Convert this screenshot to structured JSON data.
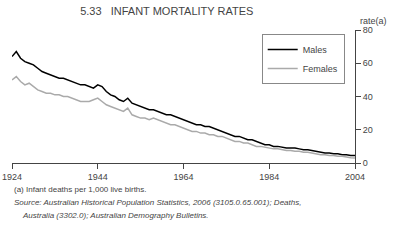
{
  "chart_data": {
    "type": "line",
    "title": "5.33   INFANT MORTALITY RATES",
    "y_label": "rate(a)",
    "annotations": [
      "(a) Infant deaths per 1,000 live births.",
      "Source: Australian Historical Population Statistics, 2006 (3105.0.65.001); Deaths,",
      "Australia (3302.0); Australian Demography Bulletins."
    ],
    "x": [
      1924,
      1925,
      1926,
      1927,
      1928,
      1929,
      1930,
      1931,
      1932,
      1933,
      1934,
      1935,
      1936,
      1937,
      1938,
      1939,
      1940,
      1941,
      1942,
      1943,
      1944,
      1945,
      1946,
      1947,
      1948,
      1949,
      1950,
      1951,
      1952,
      1953,
      1954,
      1955,
      1956,
      1957,
      1958,
      1959,
      1960,
      1961,
      1962,
      1963,
      1964,
      1965,
      1966,
      1967,
      1968,
      1969,
      1970,
      1971,
      1972,
      1973,
      1974,
      1975,
      1976,
      1977,
      1978,
      1979,
      1980,
      1981,
      1982,
      1983,
      1984,
      1985,
      1986,
      1987,
      1988,
      1989,
      1990,
      1991,
      1992,
      1993,
      1994,
      1995,
      1996,
      1997,
      1998,
      1999,
      2000,
      2001,
      2002,
      2003,
      2004
    ],
    "series": [
      {
        "name": "Males",
        "color": "#000000",
        "values": [
          64,
          67,
          63,
          61,
          60,
          59,
          57,
          55,
          54,
          53,
          52,
          51,
          51,
          50,
          49,
          48,
          47,
          47,
          46,
          45,
          47,
          46,
          43,
          41,
          40,
          38,
          37,
          39,
          36,
          35,
          34,
          33,
          32,
          32,
          31,
          30,
          29,
          29,
          28,
          27,
          26,
          25,
          24,
          23,
          23,
          22,
          22,
          21,
          20,
          19,
          18,
          17,
          16,
          16,
          15,
          14,
          14,
          13,
          12,
          11,
          11,
          10,
          10,
          9.5,
          9,
          9,
          9,
          8.5,
          8,
          8,
          7.5,
          7,
          6.5,
          6,
          6,
          5.5,
          5.5,
          5,
          5,
          4.5,
          4.5
        ]
      },
      {
        "name": "Females",
        "color": "#aaaaaa",
        "values": [
          50,
          52,
          49,
          47,
          48,
          46,
          44,
          43,
          42,
          42,
          41,
          41,
          40,
          40,
          39,
          38,
          37,
          37,
          37,
          38,
          39,
          37,
          35,
          34,
          33,
          32,
          31,
          33,
          29,
          28,
          27,
          27,
          26,
          27,
          26,
          25,
          24,
          23,
          23,
          22,
          21,
          20,
          19,
          19,
          18,
          18,
          17,
          17,
          16,
          16,
          15,
          14,
          13,
          13,
          12,
          12,
          11,
          10,
          10,
          9.5,
          9,
          8.5,
          8.5,
          8,
          7.5,
          7.5,
          7,
          7,
          6.5,
          6.5,
          6,
          5.5,
          5,
          5,
          4.5,
          4.5,
          4,
          4,
          3.5,
          3.2,
          3
        ]
      }
    ],
    "xlim": [
      1924,
      2004
    ],
    "ylim": [
      0,
      80
    ],
    "xticks": [
      1924,
      1944,
      1964,
      1984,
      2004
    ],
    "yticks": [
      0,
      20,
      40,
      60,
      80
    ],
    "grid": false,
    "legend": "upper right"
  }
}
